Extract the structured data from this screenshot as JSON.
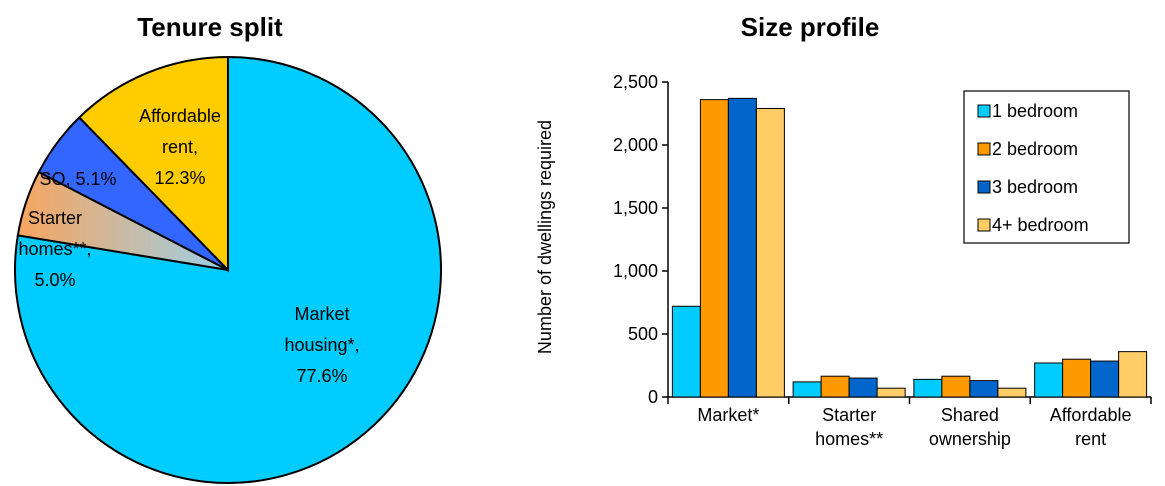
{
  "chart_data": [
    {
      "type": "pie",
      "title": "Tenure split",
      "slices": [
        {
          "label": "Market housing*, 77.6%",
          "value": 77.6,
          "color": "#00CCFF"
        },
        {
          "label": "Starter homes**, 5.0%",
          "value": 5.0,
          "color": "#F7A55E"
        },
        {
          "label": "SO, 5.1%",
          "value": 5.1,
          "color": "#3366FF"
        },
        {
          "label": "Affordable rent, 12.3%",
          "value": 12.3,
          "color": "#FFCC00"
        }
      ],
      "label_lines": [
        [
          "Market",
          "housing*,",
          "77.6%"
        ],
        [
          "Starter",
          "homes**,",
          "5.0%"
        ],
        [
          "SO, 5.1%"
        ],
        [
          "Affordable",
          "rent,",
          "12.3%"
        ]
      ]
    },
    {
      "type": "bar",
      "title": "Size profile",
      "ylabel": "Number of dwellings required",
      "xlabel": "",
      "ylim": [
        0,
        2500
      ],
      "yticks": [
        0,
        500,
        1000,
        1500,
        2000,
        2500
      ],
      "ytick_labels": [
        "0",
        "500",
        "1,000",
        "1,500",
        "2,000",
        "2,500"
      ],
      "categories": [
        "Market*",
        "Starter homes**",
        "Shared ownership",
        "Affordable rent"
      ],
      "category_lines": [
        [
          "Market*"
        ],
        [
          "Starter",
          "homes**"
        ],
        [
          "Shared",
          "ownership"
        ],
        [
          "Affordable",
          "rent"
        ]
      ],
      "series": [
        {
          "name": "1 bedroom",
          "values": [
            720,
            120,
            140,
            270
          ],
          "color": "#00CCFF"
        },
        {
          "name": "2 bedroom",
          "values": [
            2360,
            165,
            165,
            300
          ],
          "color": "#FF9900"
        },
        {
          "name": "3 bedroom",
          "values": [
            2370,
            150,
            130,
            285
          ],
          "color": "#0066CC"
        },
        {
          "name": "4+ bedroom",
          "values": [
            2290,
            70,
            70,
            360
          ],
          "color": "#FFCC66"
        }
      ],
      "legend_position": "top-right",
      "grid": false
    }
  ]
}
